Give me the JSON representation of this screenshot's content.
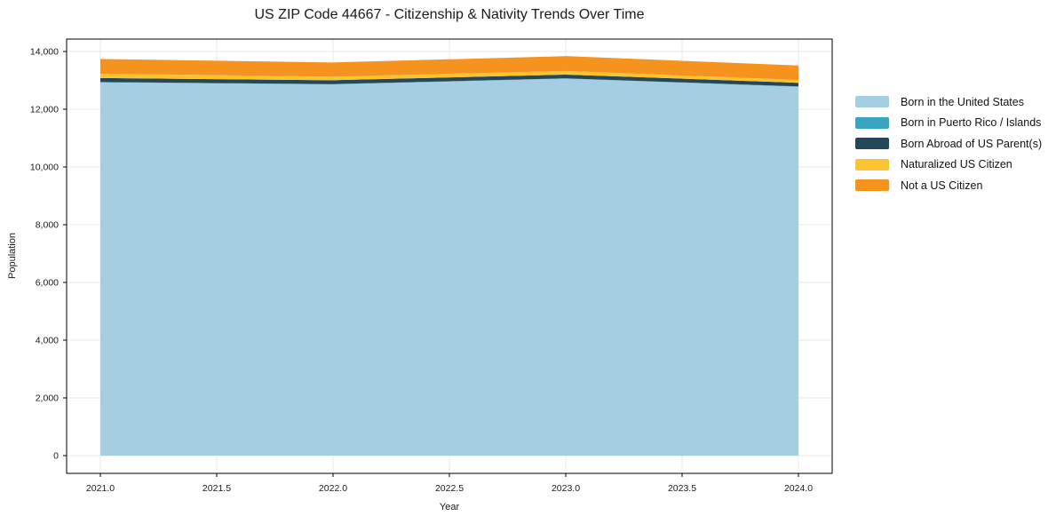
{
  "title": "US ZIP Code 44667 - Citizenship & Nativity Trends Over Time",
  "chart_data": {
    "type": "area",
    "stacked": true,
    "title": "US ZIP Code 44667 - Citizenship & Nativity Trends Over Time",
    "xlabel": "Year",
    "ylabel": "Population",
    "x": [
      2021,
      2022,
      2023,
      2024
    ],
    "series": [
      {
        "name": "Born in the United States",
        "color": "#a6cee3",
        "values": [
          12930,
          12860,
          13060,
          12780
        ]
      },
      {
        "name": "Born in Puerto Rico / Islands",
        "color": "#39a5c0",
        "values": [
          10,
          10,
          10,
          10
        ]
      },
      {
        "name": "Born Abroad of US Parent(s)",
        "color": "#25475a",
        "values": [
          140,
          135,
          130,
          125
        ]
      },
      {
        "name": "Naturalized US Citizen",
        "color": "#fcc330",
        "values": [
          150,
          125,
          125,
          100
        ]
      },
      {
        "name": "Not a US Citizen",
        "color": "#f6921e",
        "values": [
          510,
          490,
          515,
          500
        ]
      }
    ],
    "totals": [
      13740,
      13620,
      13840,
      13515
    ],
    "xlim": [
      2020.855,
      2024.145
    ],
    "ylim": [
      -615,
      14430
    ],
    "x_ticks": {
      "values": [
        2021.0,
        2021.5,
        2022.0,
        2022.5,
        2023.0,
        2023.5,
        2024.0
      ],
      "labels": [
        "2021.0",
        "2021.5",
        "2022.0",
        "2022.5",
        "2023.0",
        "2023.5",
        "2024.0"
      ]
    },
    "y_ticks": {
      "values": [
        0,
        2000,
        4000,
        6000,
        8000,
        10000,
        12000,
        14000
      ],
      "labels": [
        "0",
        "2,000",
        "4,000",
        "6,000",
        "8,000",
        "10,000",
        "12,000",
        "14,000"
      ]
    },
    "grid": true,
    "grid_color": "#e9e9e9",
    "spine_color": "#000000",
    "legend_position": "right"
  }
}
